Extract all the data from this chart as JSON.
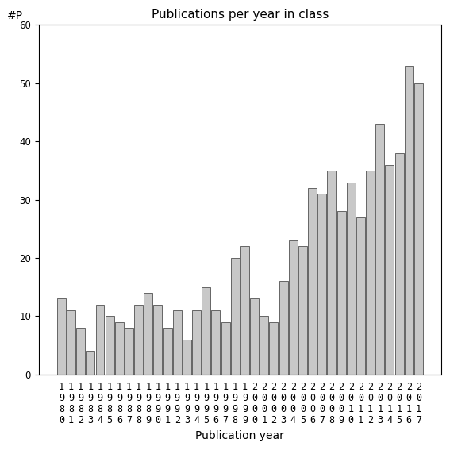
{
  "title": "Publications per year in class",
  "xlabel": "Publication year",
  "ylabel": "#P",
  "years": [
    1980,
    1981,
    1982,
    1983,
    1984,
    1985,
    1986,
    1987,
    1988,
    1989,
    1990,
    1991,
    1992,
    1993,
    1994,
    1995,
    1996,
    1997,
    1998,
    1999,
    2000,
    2001,
    2002,
    2003,
    2004,
    2005,
    2006,
    2007,
    2008,
    2009,
    2010,
    2011,
    2012,
    2013,
    2014,
    2015,
    2016,
    2017
  ],
  "values": [
    13,
    11,
    8,
    4,
    12,
    10,
    9,
    8,
    12,
    14,
    12,
    8,
    11,
    6,
    11,
    15,
    11,
    9,
    20,
    22,
    13,
    10,
    9,
    16,
    23,
    22,
    32,
    31,
    35,
    28,
    33,
    27,
    35,
    43,
    36,
    38,
    53,
    50
  ],
  "bar_color": "#c8c8c8",
  "bar_edgecolor": "#333333",
  "ylim": [
    0,
    60
  ],
  "yticks": [
    0,
    10,
    20,
    30,
    40,
    50,
    60
  ],
  "background_color": "#ffffff",
  "title_fontsize": 11,
  "label_fontsize": 10,
  "tick_fontsize": 8.5
}
